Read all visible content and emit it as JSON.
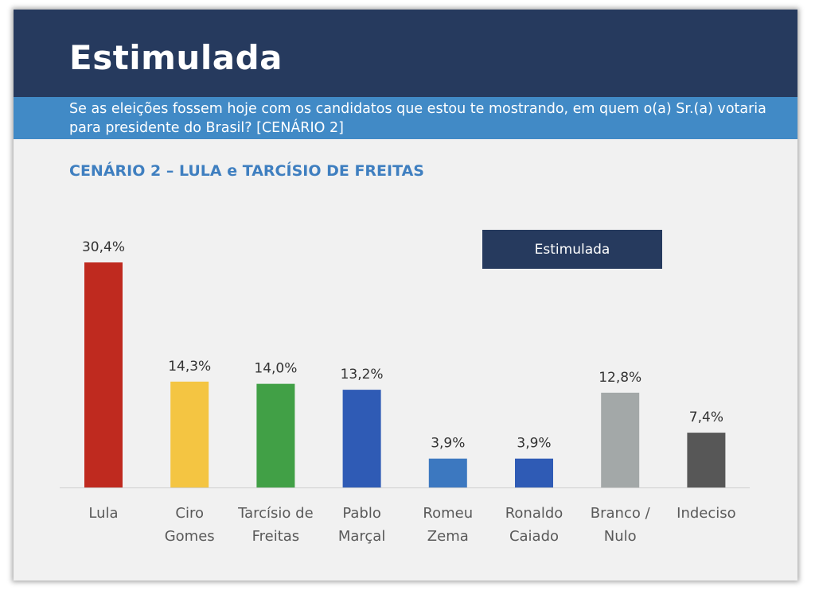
{
  "header": {
    "title": "Estimulada",
    "subtitle": "Se as eleições fossem hoje com os candidatos que estou te mostrando, em quem o(a) Sr.(a) votaria para presidente do Brasil? [CENÁRIO 2]"
  },
  "scenario_title": "CENÁRIO 2 – LULA e TARCÍSIO DE FREITAS",
  "legend_label": "Estimulada",
  "chart_data": {
    "type": "bar",
    "title": "CENÁRIO 2 – LULA e TARCÍSIO DE FREITAS",
    "categories": [
      [
        "Lula"
      ],
      [
        "Ciro",
        "Gomes"
      ],
      [
        "Tarcísio de",
        "Freitas"
      ],
      [
        "Pablo",
        "Marçal"
      ],
      [
        "Romeu",
        "Zema"
      ],
      [
        "Ronaldo",
        "Caiado"
      ],
      [
        "Branco /",
        "Nulo"
      ],
      [
        "Indeciso"
      ]
    ],
    "values": [
      30.4,
      14.3,
      14.0,
      13.2,
      3.9,
      3.9,
      12.8,
      7.4
    ],
    "value_labels": [
      "30,4%",
      "14,3%",
      "14,0%",
      "13,2%",
      "3,9%",
      "3,9%",
      "12,8%",
      "7,4%"
    ],
    "colors": [
      "#bf2a1f",
      "#f4c542",
      "#41a046",
      "#2f5bb5",
      "#3c78c0",
      "#2f5bb5",
      "#a3a8a8",
      "#575757"
    ],
    "series": [
      {
        "name": "Estimulada",
        "values": [
          30.4,
          14.3,
          14.0,
          13.2,
          3.9,
          3.9,
          12.8,
          7.4
        ]
      }
    ],
    "ylim": [
      0,
      30.4
    ],
    "xlabel": "",
    "ylabel": "",
    "grid": false,
    "legend_position": "top-right"
  }
}
